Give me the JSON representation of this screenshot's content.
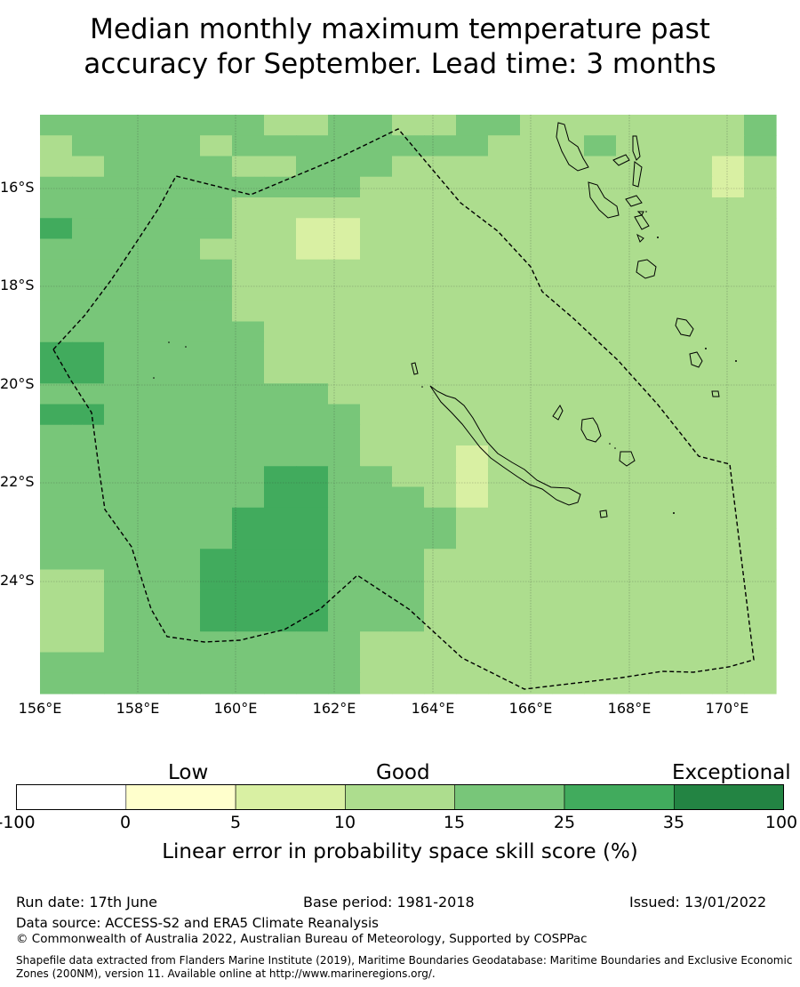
{
  "title": {
    "line1": "Median monthly maximum temperature past",
    "line2": "accuracy for September. Lead time: 3 months"
  },
  "map": {
    "lat_labels": [
      "16°S",
      "18°S",
      "20°S",
      "22°S",
      "24°S"
    ],
    "lon_labels": [
      "156°E",
      "158°E",
      "160°E",
      "162°E",
      "164°E",
      "166°E",
      "168°E",
      "170°E"
    ],
    "grid_cells_rows_north_to_south": [
      "44444443344334433333334",
      "34444344444444333433334",
      "33444433444333333333323",
      "44444444443333333333323",
      "44444433333333333333333",
      "54444433223333333333333",
      "44444333223333333333333",
      "44444433333333333333333",
      "44444433333333333333333",
      "44444433333333333333333",
      "44444443333333333333333",
      "55444443333333333333333",
      "55444443333333333333333",
      "44444444433333333333333",
      "55444444443333333333333",
      "44444444443333333333333",
      "44444444443332333333333",
      "44444445544332333333333",
      "44444445544432333333333",
      "44444455544443333333333",
      "44444455544443333333333",
      "44444555544433333333333",
      "33444555544433333333333",
      "33444555544433333333333",
      "33444555544433333333333",
      "33444444443333333333333",
      "44444444443333333333333",
      "44444444443333333333333"
    ]
  },
  "colorbar": {
    "category_labels": [
      "Low",
      "Good",
      "Exceptional"
    ],
    "ticks": [
      "-100",
      "0",
      "5",
      "10",
      "15",
      "25",
      "35",
      "100"
    ],
    "colors": [
      "#ffffff",
      "#ffffcc",
      "#d9f0a3",
      "#addd8e",
      "#78c679",
      "#41ab5d",
      "#238443"
    ],
    "label": "Linear error in probability space skill score (%)"
  },
  "footer": {
    "run_date": "Run date: 17th June",
    "base_period": "Base period: 1981-2018",
    "issued": "Issued: 13/01/2022",
    "data_source": "Data source: ACCESS-S2 and ERA5 Climate Reanalysis",
    "copyright": "© Commonwealth of Australia 2022, Australian Bureau of Meteorology, Supported by COSPPac",
    "shapefile_line1": "Shapefile data extracted from Flanders Marine Institute (2019), Maritime Boundaries Geodatabase: Maritime Boundaries and Exclusive Economic",
    "shapefile_line2": "Zones (200NM), version 11. Available online at http://www.marineregions.org/."
  }
}
